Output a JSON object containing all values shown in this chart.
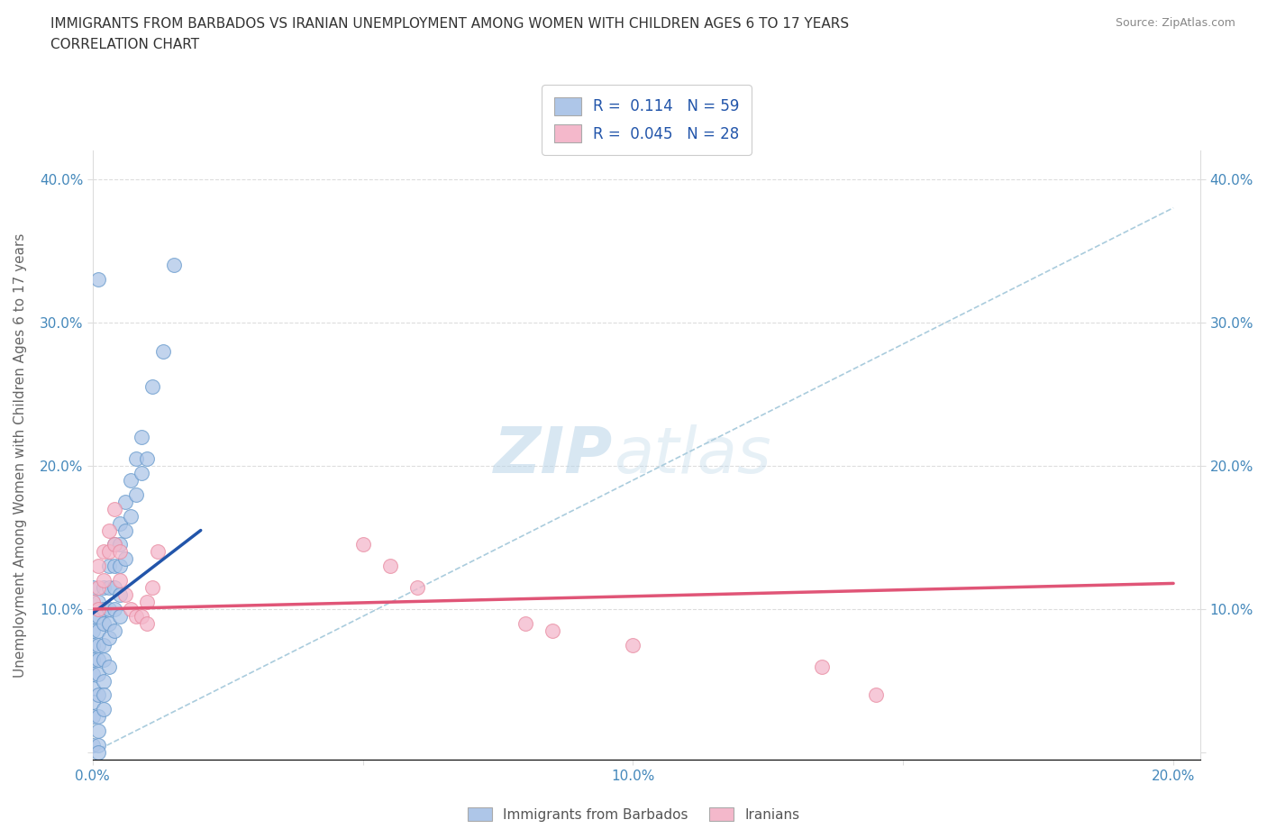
{
  "title": "IMMIGRANTS FROM BARBADOS VS IRANIAN UNEMPLOYMENT AMONG WOMEN WITH CHILDREN AGES 6 TO 17 YEARS",
  "subtitle": "CORRELATION CHART",
  "source": "Source: ZipAtlas.com",
  "ylabel": "Unemployment Among Women with Children Ages 6 to 17 years",
  "xlim": [
    0.0,
    0.205
  ],
  "ylim": [
    -0.005,
    0.42
  ],
  "r_barbados": 0.114,
  "n_barbados": 59,
  "r_iranians": 0.045,
  "n_iranians": 28,
  "barbados_color": "#aec6e8",
  "barbados_edge_color": "#6699cc",
  "iranian_color": "#f4b8cb",
  "iranian_edge_color": "#e88aa0",
  "barbados_line_color": "#2255aa",
  "iranian_line_color": "#e05577",
  "diagonal_line_color": "#aaccdd",
  "legend_label_color": "#2255aa",
  "tick_label_color": "#4488bb",
  "ylabel_color": "#666666",
  "title_color": "#333333",
  "source_color": "#888888",
  "watermark_color": "#cce0f0",
  "grid_color": "#dddddd",
  "barbados_x": [
    0.0,
    0.0,
    0.0,
    0.0,
    0.0,
    0.0,
    0.0,
    0.0,
    0.0,
    0.0,
    0.001,
    0.001,
    0.001,
    0.001,
    0.001,
    0.001,
    0.001,
    0.001,
    0.001,
    0.001,
    0.001,
    0.001,
    0.002,
    0.002,
    0.002,
    0.002,
    0.002,
    0.002,
    0.002,
    0.002,
    0.003,
    0.003,
    0.003,
    0.003,
    0.003,
    0.003,
    0.004,
    0.004,
    0.004,
    0.004,
    0.004,
    0.005,
    0.005,
    0.005,
    0.005,
    0.005,
    0.006,
    0.006,
    0.006,
    0.007,
    0.007,
    0.008,
    0.008,
    0.009,
    0.009,
    0.01,
    0.011,
    0.013,
    0.015
  ],
  "barbados_y": [
    0.115,
    0.095,
    0.085,
    0.075,
    0.065,
    0.055,
    0.045,
    0.035,
    0.025,
    0.005,
    0.105,
    0.095,
    0.085,
    0.075,
    0.065,
    0.055,
    0.04,
    0.025,
    0.015,
    0.005,
    0.0,
    0.33,
    0.115,
    0.1,
    0.09,
    0.075,
    0.065,
    0.05,
    0.04,
    0.03,
    0.13,
    0.115,
    0.1,
    0.09,
    0.08,
    0.06,
    0.145,
    0.13,
    0.115,
    0.1,
    0.085,
    0.16,
    0.145,
    0.13,
    0.11,
    0.095,
    0.175,
    0.155,
    0.135,
    0.19,
    0.165,
    0.205,
    0.18,
    0.22,
    0.195,
    0.205,
    0.255,
    0.28,
    0.34
  ],
  "iranian_x": [
    0.0,
    0.001,
    0.001,
    0.001,
    0.002,
    0.002,
    0.003,
    0.003,
    0.004,
    0.004,
    0.005,
    0.005,
    0.006,
    0.007,
    0.008,
    0.009,
    0.01,
    0.01,
    0.011,
    0.012,
    0.05,
    0.055,
    0.06,
    0.08,
    0.085,
    0.1,
    0.135,
    0.145
  ],
  "iranian_y": [
    0.105,
    0.13,
    0.115,
    0.1,
    0.14,
    0.12,
    0.155,
    0.14,
    0.17,
    0.145,
    0.14,
    0.12,
    0.11,
    0.1,
    0.095,
    0.095,
    0.09,
    0.105,
    0.115,
    0.14,
    0.145,
    0.13,
    0.115,
    0.09,
    0.085,
    0.075,
    0.06,
    0.04
  ],
  "barbados_line_x": [
    0.0,
    0.02
  ],
  "barbados_line_y": [
    0.097,
    0.155
  ],
  "iranian_line_x": [
    0.0,
    0.2
  ],
  "iranian_line_y": [
    0.1,
    0.118
  ]
}
